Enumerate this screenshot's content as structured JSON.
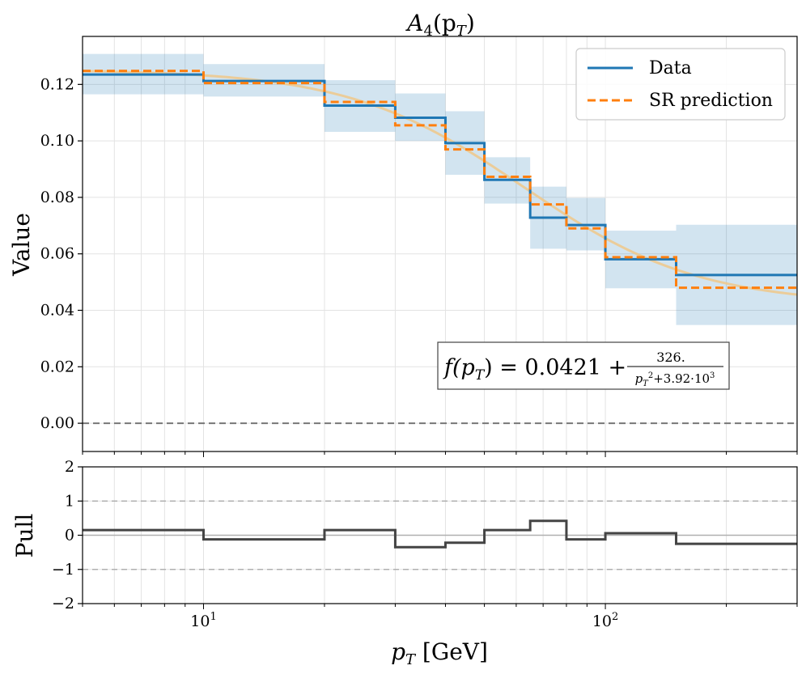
{
  "chart_data": [
    {
      "type": "line",
      "panel": "main",
      "title_main": "A",
      "title_sub": "4",
      "title_arg": "(p",
      "title_arg_sub": "T",
      "title_close": ")",
      "ylabel": "Value",
      "xscale": "log",
      "xlim": [
        5,
        300
      ],
      "ylim": [
        -0.01,
        0.137
      ],
      "yticks": [
        0.0,
        0.02,
        0.04,
        0.06,
        0.08,
        0.1,
        0.12
      ],
      "ytick_labels": [
        "0.00",
        "0.02",
        "0.04",
        "0.06",
        "0.08",
        "0.10",
        "0.12"
      ],
      "grid": true,
      "legend_position": "top-right",
      "bin_edges": [
        5,
        10,
        20,
        30,
        40,
        50,
        65,
        80,
        100,
        150,
        300
      ],
      "series": [
        {
          "name": "Data",
          "style": "step",
          "color": "#1f77b4",
          "values": [
            0.1235,
            0.1212,
            0.1125,
            0.1082,
            0.0992,
            0.0862,
            0.0728,
            0.0702,
            0.0581,
            0.0525
          ]
        },
        {
          "name": "SR prediction",
          "style": "step-dashed",
          "color": "#ff7f0e",
          "values": [
            0.1248,
            0.1205,
            0.1138,
            0.1055,
            0.097,
            0.0873,
            0.0775,
            0.069,
            0.0588,
            0.048
          ]
        }
      ],
      "uncertainty_bands": {
        "color": "#1f77b4",
        "low": [
          0.1165,
          0.1157,
          0.1032,
          0.1,
          0.088,
          0.0778,
          0.0618,
          0.0612,
          0.0478,
          0.0348
        ],
        "high": [
          0.1308,
          0.1272,
          0.1215,
          0.1168,
          0.1105,
          0.0942,
          0.0838,
          0.0798,
          0.0682,
          0.0703
        ]
      },
      "fit_curve": {
        "color": "#f0c88a",
        "formula": "0.0421 + 326/(pT^2 + 3920)"
      },
      "reference_line": {
        "y": 0.0,
        "style": "dashed",
        "color": "#777777"
      },
      "annotation": {
        "lhs": "f(p",
        "lhs_sub": "T",
        "lhs_close": ") = 0.0421 +",
        "numerator": "326.",
        "den_a": "p",
        "den_sub": "T",
        "den_sup": "2",
        "den_b": "+3.92·10",
        "den_exp": "3"
      }
    },
    {
      "type": "line",
      "panel": "pull",
      "ylabel": "Pull",
      "xlabel_main": "p",
      "xlabel_sub": "T",
      "xlabel_unit": "[GeV]",
      "xscale": "log",
      "xlim": [
        5,
        300
      ],
      "ylim": [
        -2,
        2
      ],
      "yticks": [
        -2,
        -1,
        0,
        1,
        2
      ],
      "ytick_labels": [
        "−2",
        "−1",
        "0",
        "1",
        "2"
      ],
      "xtick_major": [
        10,
        100
      ],
      "xtick_labels": [
        {
          "base": "10",
          "exp": "1"
        },
        {
          "base": "10",
          "exp": "2"
        }
      ],
      "grid": true,
      "reference_lines": [
        {
          "y": 1,
          "style": "dashed",
          "color": "#b0b0b0"
        },
        {
          "y": -1,
          "style": "dashed",
          "color": "#b0b0b0"
        },
        {
          "y": 0,
          "style": "solid",
          "color": "#b0b0b0"
        }
      ],
      "bin_edges": [
        5,
        10,
        20,
        30,
        40,
        50,
        65,
        80,
        100,
        150,
        300
      ],
      "series": [
        {
          "style": "step",
          "color": "#444444",
          "values": [
            0.15,
            -0.12,
            0.15,
            -0.35,
            -0.22,
            0.15,
            0.42,
            -0.12,
            0.06,
            -0.25
          ]
        }
      ]
    }
  ]
}
